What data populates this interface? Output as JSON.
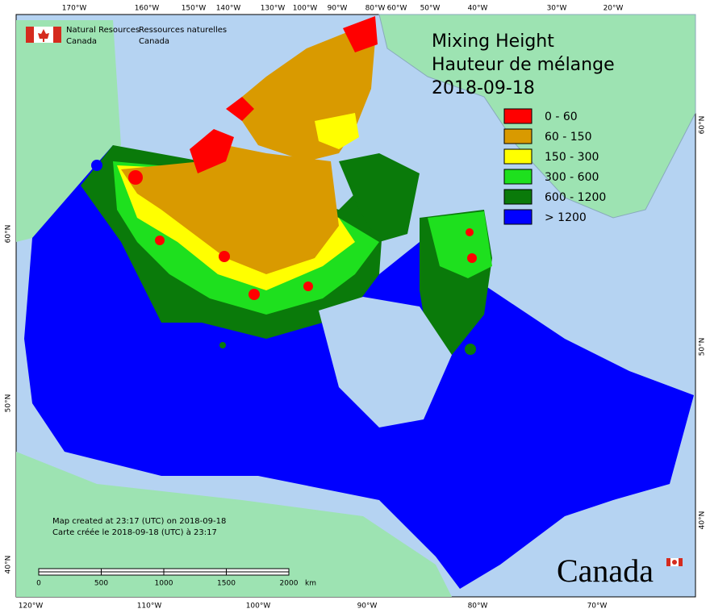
{
  "header": {
    "org_en": [
      "Natural Resources",
      "Canada"
    ],
    "org_fr": [
      "Ressources naturelles",
      "Canada"
    ]
  },
  "title": [
    "Mixing Height",
    "Hauteur de mélange",
    "2018-09-18"
  ],
  "legend": [
    {
      "label": "0 - 60",
      "color": "#ff0000"
    },
    {
      "label": "60 - 150",
      "color": "#d99a00"
    },
    {
      "label": "150 - 300",
      "color": "#ffff00"
    },
    {
      "label": "300 - 600",
      "color": "#1ee01e"
    },
    {
      "label": "600 - 1200",
      "color": "#0a7a0a"
    },
    {
      "label": "> 1200",
      "color": "#0000ff"
    }
  ],
  "graticule": {
    "top": [
      "170°W",
      "160°W",
      "150°W",
      "140°W",
      "130°W",
      "100°W",
      "90°W",
      "80°W",
      "60°W",
      "50°W",
      "40°W",
      "30°W",
      "20°W"
    ],
    "bottom": [
      "120°W",
      "110°W",
      "100°W",
      "90°W",
      "80°W",
      "70°W"
    ],
    "left": [
      "60°N",
      "50°N",
      "40°N"
    ],
    "right": [
      "60°N",
      "50°N",
      "40°N"
    ]
  },
  "notes": [
    "Map created at 23:17 (UTC) on 2018-09-18",
    "Carte créée le 2018-09-18 (UTC) à 23:17"
  ],
  "scale_bar": {
    "ticks": [
      0,
      500,
      1000,
      1500,
      2000
    ],
    "unit": "km"
  },
  "wordmark": "Canada"
}
